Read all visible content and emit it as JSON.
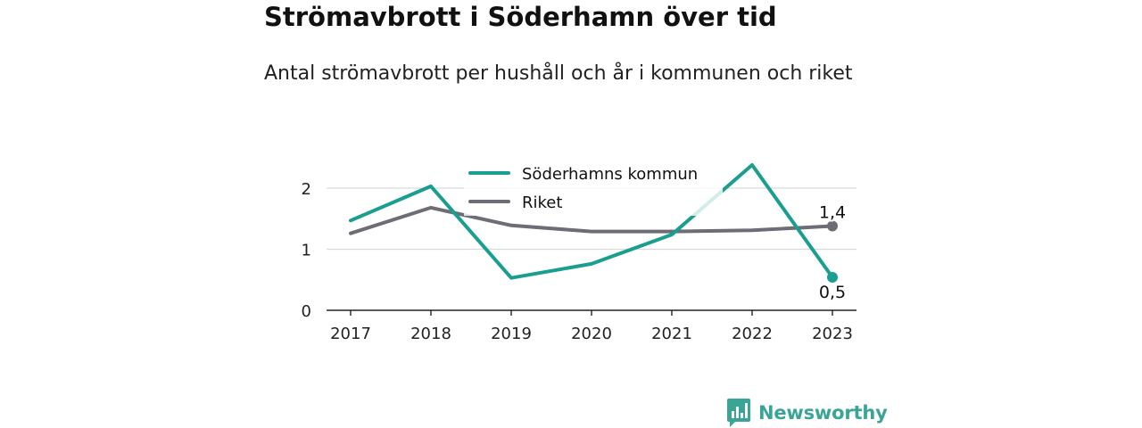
{
  "header": {
    "title": "Strömavbrott i Söderhamn över tid",
    "subtitle": "Antal strömavbrott per hushåll och år i kommunen och riket"
  },
  "chart_data": {
    "type": "line",
    "x": [
      "2017",
      "2018",
      "2019",
      "2020",
      "2021",
      "2022",
      "2023"
    ],
    "yticks": [
      "0",
      "1",
      "2"
    ],
    "ylim": [
      0,
      2.5
    ],
    "grid": true,
    "legend_position": "top",
    "series": [
      {
        "name": "Söderhamns kommun",
        "color": "#1a9e8f",
        "values": [
          1.47,
          2.03,
          0.53,
          0.76,
          1.24,
          2.38,
          0.54
        ],
        "end_label": "0,5"
      },
      {
        "name": "Riket",
        "color": "#6e6c74",
        "values": [
          1.26,
          1.68,
          1.39,
          1.29,
          1.29,
          1.31,
          1.38
        ],
        "end_label": "1,4"
      }
    ]
  },
  "brand": {
    "name": "Newsworthy",
    "color": "#3aa597"
  }
}
